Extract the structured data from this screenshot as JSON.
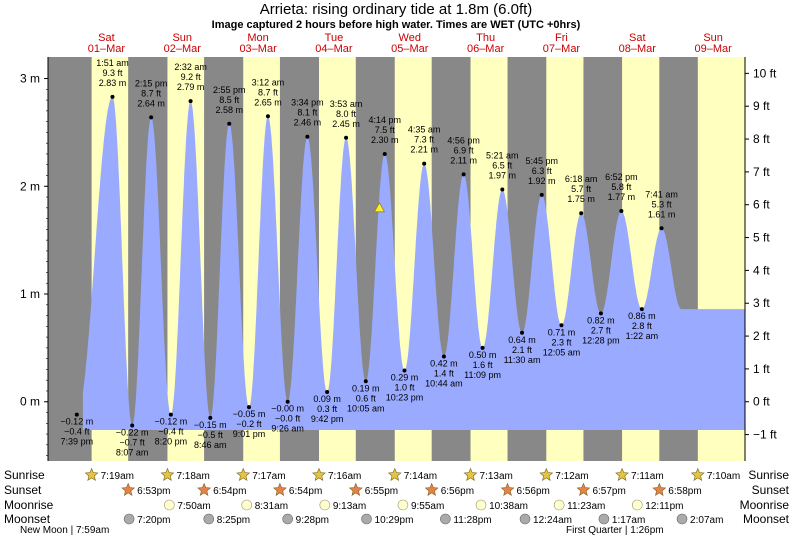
{
  "header": {
    "title": "Arrieta: rising  ordinary tide at 1.8m (6.0ft)",
    "subtitle": "Image captured 2 hours before high water. Times are WET (UTC +0hrs)"
  },
  "days": [
    {
      "dow": "Sat",
      "date": "01–Mar"
    },
    {
      "dow": "Sun",
      "date": "02–Mar"
    },
    {
      "dow": "Mon",
      "date": "03–Mar"
    },
    {
      "dow": "Tue",
      "date": "04–Mar"
    },
    {
      "dow": "Wed",
      "date": "05–Mar"
    },
    {
      "dow": "Thu",
      "date": "06–Mar"
    },
    {
      "dow": "Fri",
      "date": "07–Mar"
    },
    {
      "dow": "Sat",
      "date": "08–Mar"
    },
    {
      "dow": "Sun",
      "date": "09–Mar"
    }
  ],
  "chart_data": {
    "type": "area",
    "title": "Arrieta: rising  ordinary tide at 1.8m (6.0ft)",
    "xlabel": "",
    "ylabel": "",
    "y_left_unit": "m",
    "y_right_unit": "ft",
    "ylim_m": [
      -0.55,
      3.2
    ],
    "y_left_ticks": [
      {
        "v": 0,
        "label": "0 m"
      },
      {
        "v": 1,
        "label": "1 m"
      },
      {
        "v": 2,
        "label": "2 m"
      },
      {
        "v": 3,
        "label": "3 m"
      }
    ],
    "y_right_ticks": [
      "−1 ft",
      "0 ft",
      "1 ft",
      "2 ft",
      "3 ft",
      "4 ft",
      "5 ft",
      "6 ft",
      "7 ft",
      "8 ft",
      "9 ft",
      "10 ft"
    ],
    "x_range_days": [
      0.19,
      8.92
    ],
    "current_level_m": 1.8,
    "current_time_day": 4.1,
    "extremes": [
      {
        "t": 0.11,
        "h": -0.12,
        "m": "−0.12 m",
        "ft": "−0.4 ft",
        "time": "7:39 pm",
        "type": "low"
      },
      {
        "t": 0.58,
        "h": 2.83,
        "m": "2.83 m",
        "ft": "9.3 ft",
        "time": "1:51 am",
        "type": "high"
      },
      {
        "t": 0.84,
        "h": -0.22,
        "m": "−0.22 m",
        "ft": "−0.7 ft",
        "time": "8:07 am",
        "type": "low"
      },
      {
        "t": 1.09,
        "h": 2.64,
        "m": "2.64 m",
        "ft": "8.7 ft",
        "time": "2:15 pm",
        "type": "high"
      },
      {
        "t": 1.35,
        "h": -0.12,
        "m": "−0.12 m",
        "ft": "−0.4 ft",
        "time": "8:20 pm",
        "type": "low"
      },
      {
        "t": 1.61,
        "h": 2.79,
        "m": "2.79 m",
        "ft": "9.2 ft",
        "time": "2:32 am",
        "type": "high"
      },
      {
        "t": 1.87,
        "h": -0.15,
        "m": "−0.15 m",
        "ft": "−0.5 ft",
        "time": "8:46 am",
        "type": "low"
      },
      {
        "t": 2.12,
        "h": 2.58,
        "m": "2.58 m",
        "ft": "8.5 ft",
        "time": "2:55 pm",
        "type": "high"
      },
      {
        "t": 2.38,
        "h": -0.05,
        "m": "−0.05 m",
        "ft": "−0.2 ft",
        "time": "9:01 pm",
        "type": "low"
      },
      {
        "t": 2.63,
        "h": 2.65,
        "m": "2.65 m",
        "ft": "8.7 ft",
        "time": "3:12 am",
        "type": "high"
      },
      {
        "t": 2.89,
        "h": -0.0,
        "m": "−0.00 m",
        "ft": "−0.0 ft",
        "time": "9:26 am",
        "type": "low"
      },
      {
        "t": 3.15,
        "h": 2.46,
        "m": "2.46 m",
        "ft": "8.1 ft",
        "time": "3:34 pm",
        "type": "high"
      },
      {
        "t": 3.41,
        "h": 0.09,
        "m": "0.09 m",
        "ft": "0.3 ft",
        "time": "9:42 pm",
        "type": "low"
      },
      {
        "t": 3.66,
        "h": 2.45,
        "m": "2.45 m",
        "ft": "8.0 ft",
        "time": "3:53 am",
        "type": "high"
      },
      {
        "t": 3.92,
        "h": 0.19,
        "m": "0.19 m",
        "ft": "0.6 ft",
        "time": "10:05 am",
        "type": "low"
      },
      {
        "t": 4.17,
        "h": 2.3,
        "m": "2.30 m",
        "ft": "7.5 ft",
        "time": "4:14 pm",
        "type": "high"
      },
      {
        "t": 4.43,
        "h": 0.29,
        "m": "0.29 m",
        "ft": "1.0 ft",
        "time": "10:23 pm",
        "type": "low"
      },
      {
        "t": 4.69,
        "h": 2.21,
        "m": "2.21 m",
        "ft": "7.3 ft",
        "time": "4:35 am",
        "type": "high"
      },
      {
        "t": 4.95,
        "h": 0.42,
        "m": "0.42 m",
        "ft": "1.4 ft",
        "time": "10:44 am",
        "type": "low"
      },
      {
        "t": 5.21,
        "h": 2.11,
        "m": "2.11 m",
        "ft": "6.9 ft",
        "time": "4:56 pm",
        "type": "high"
      },
      {
        "t": 5.46,
        "h": 0.5,
        "m": "0.50 m",
        "ft": "1.6 ft",
        "time": "11:09 pm",
        "type": "low"
      },
      {
        "t": 5.72,
        "h": 1.97,
        "m": "1.97 m",
        "ft": "6.5 ft",
        "time": "5:21 am",
        "type": "high"
      },
      {
        "t": 5.98,
        "h": 0.64,
        "m": "0.64 m",
        "ft": "2.1 ft",
        "time": "11:30 am",
        "type": "low"
      },
      {
        "t": 6.24,
        "h": 1.92,
        "m": "1.92 m",
        "ft": "6.3 ft",
        "time": "5:45 pm",
        "type": "high"
      },
      {
        "t": 6.5,
        "h": 0.71,
        "m": "0.71 m",
        "ft": "2.3 ft",
        "time": "12:05 am",
        "type": "low"
      },
      {
        "t": 6.76,
        "h": 1.75,
        "m": "1.75 m",
        "ft": "5.7 ft",
        "time": "6:18 am",
        "type": "high"
      },
      {
        "t": 7.02,
        "h": 0.82,
        "m": "0.82 m",
        "ft": "2.7 ft",
        "time": "12:28 pm",
        "type": "low"
      },
      {
        "t": 7.29,
        "h": 1.77,
        "m": "1.77 m",
        "ft": "5.8 ft",
        "time": "6:52 pm",
        "type": "high"
      },
      {
        "t": 7.56,
        "h": 0.86,
        "m": "0.86 m",
        "ft": "2.8 ft",
        "time": "1:22 am",
        "type": "low"
      },
      {
        "t": 7.82,
        "h": 1.61,
        "m": "1.61 m",
        "ft": "5.3 ft",
        "time": "7:41 am",
        "type": "high"
      }
    ],
    "sun": [
      {
        "sunrise": "7:19am",
        "sunset": "6:53pm",
        "rise_t": 0.305,
        "set_t": 0.787
      },
      {
        "sunrise": "7:18am",
        "sunset": "6:54pm",
        "rise_t": 1.305,
        "set_t": 1.788
      },
      {
        "sunrise": "7:17am",
        "sunset": "6:54pm",
        "rise_t": 2.304,
        "set_t": 2.788
      },
      {
        "sunrise": "7:16am",
        "sunset": "6:55pm",
        "rise_t": 3.303,
        "set_t": 3.788
      },
      {
        "sunrise": "7:14am",
        "sunset": "6:56pm",
        "rise_t": 4.302,
        "set_t": 4.789
      },
      {
        "sunrise": "7:13am",
        "sunset": "6:56pm",
        "rise_t": 5.301,
        "set_t": 5.789
      },
      {
        "sunrise": "7:12am",
        "sunset": "6:57pm",
        "rise_t": 6.3,
        "set_t": 6.79
      },
      {
        "sunrise": "7:11am",
        "sunset": "6:58pm",
        "rise_t": 7.299,
        "set_t": 7.79
      },
      {
        "sunrise": "7:10am",
        "sunset": "",
        "rise_t": 8.298,
        "set_t": 8.92
      }
    ],
    "moonrise": [
      {
        "time": "7:50am",
        "t": 1.33
      },
      {
        "time": "8:31am",
        "t": 2.35
      },
      {
        "time": "9:13am",
        "t": 3.38
      },
      {
        "time": "9:55am",
        "t": 4.41
      },
      {
        "time": "10:38am",
        "t": 5.44
      },
      {
        "time": "11:23am",
        "t": 6.47
      },
      {
        "time": "12:11pm",
        "t": 7.5
      }
    ],
    "moonset": [
      {
        "time": "7:20pm",
        "t": 0.8
      },
      {
        "time": "8:25pm",
        "t": 1.85
      },
      {
        "time": "9:28pm",
        "t": 2.89
      },
      {
        "time": "10:29pm",
        "t": 3.93
      },
      {
        "time": "11:28pm",
        "t": 4.97
      },
      {
        "time": "12:24am",
        "t": 6.02
      },
      {
        "time": "1:17am",
        "t": 7.06
      },
      {
        "time": "2:07am",
        "t": 8.09
      }
    ]
  },
  "rows": {
    "sunrise": "Sunrise",
    "sunset": "Sunset",
    "moonrise": "Moonrise",
    "moonset": "Moonset"
  },
  "footer": {
    "new_moon": "New Moon | 7:59am",
    "first_quarter": "First Quarter | 1:26pm"
  },
  "colors": {
    "day": "#ffffc0",
    "night": "#888888",
    "water": "#99aaff",
    "day_header": "#cc0000",
    "sun_star": "#e6c43c",
    "sunset_star": "#e8804a",
    "moon_disc": "#ffffd0",
    "moonset_disc": "#aaaaaa",
    "marker": "#ffee33"
  }
}
